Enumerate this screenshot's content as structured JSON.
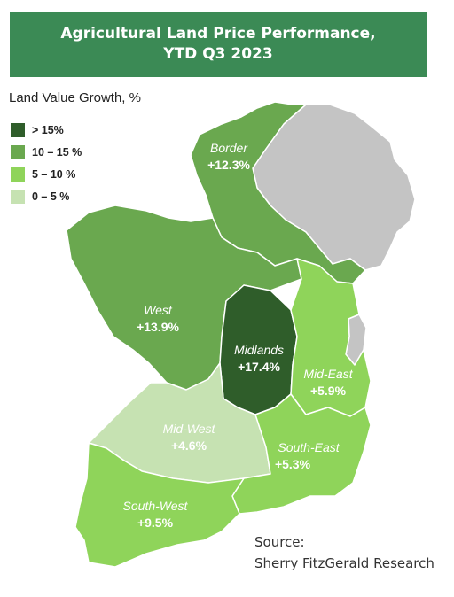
{
  "title": {
    "line1": "Agricultural Land Price Performance,",
    "line2": "YTD Q3 2023"
  },
  "legend": {
    "title": "Land Value Growth, %",
    "items": [
      {
        "label": "> 15%",
        "color": "#2f5d2a"
      },
      {
        "label": "10 – 15 %",
        "color": "#6aa84f"
      },
      {
        "label": "5 – 10 %",
        "color": "#8fd45a"
      },
      {
        "label": "0 – 5 %",
        "color": "#c6e2b2"
      }
    ]
  },
  "regions": [
    {
      "name": "Border",
      "value": "+12.3%",
      "growth": 12.3,
      "color": "#6aa84f"
    },
    {
      "name": "West",
      "value": "+13.9%",
      "growth": 13.9,
      "color": "#6aa84f"
    },
    {
      "name": "Midlands",
      "value": "+17.4%",
      "growth": 17.4,
      "color": "#2f5d2a"
    },
    {
      "name": "Mid-East",
      "value": "+5.9%",
      "growth": 5.9,
      "color": "#8fd45a"
    },
    {
      "name": "Mid-West",
      "value": "+4.6%",
      "growth": 4.6,
      "color": "#c6e2b2"
    },
    {
      "name": "South-East",
      "value": "+5.3%",
      "growth": 5.3,
      "color": "#8fd45a"
    },
    {
      "name": "South-West",
      "value": "+9.5%",
      "growth": 9.5,
      "color": "#8fd45a"
    }
  ],
  "other_territory_color": "#c4c4c4",
  "source": {
    "line1": "Source:",
    "line2": "Sherry FitzGerald Research"
  }
}
